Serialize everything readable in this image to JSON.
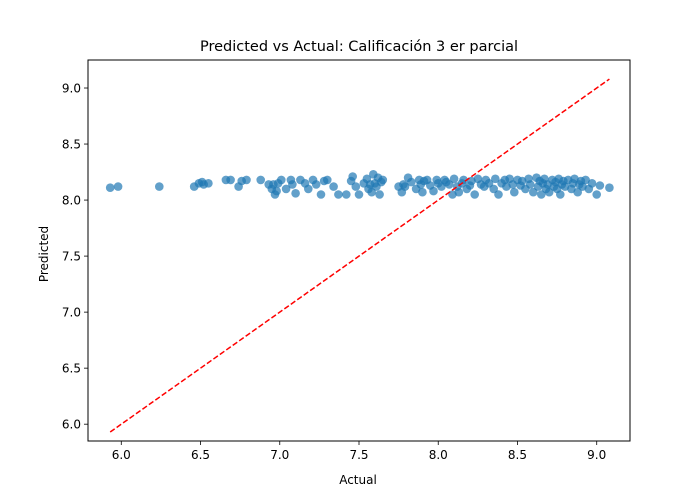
{
  "chart_data": {
    "type": "scatter",
    "title": "Predicted vs Actual: Calificación 3 er parcial",
    "xlabel": "Actual",
    "ylabel": "Predicted",
    "xlim": [
      5.79,
      9.21
    ],
    "ylim": [
      5.85,
      9.25
    ],
    "xticks": [
      "6.0",
      "6.5",
      "7.0",
      "7.5",
      "8.0",
      "8.5",
      "9.0"
    ],
    "yticks": [
      "6.0",
      "6.5",
      "7.0",
      "7.5",
      "8.0",
      "8.5",
      "9.0"
    ],
    "grid": false,
    "point_color": "#1f77b4",
    "reference_line": {
      "style": "dashed",
      "color": "#ff0000",
      "from": [
        5.93,
        5.93
      ],
      "to": [
        9.08,
        9.08
      ]
    },
    "points": [
      [
        5.93,
        8.11
      ],
      [
        5.98,
        8.12
      ],
      [
        6.24,
        8.12
      ],
      [
        6.46,
        8.12
      ],
      [
        6.49,
        8.15
      ],
      [
        6.51,
        8.16
      ],
      [
        6.52,
        8.14
      ],
      [
        6.55,
        8.15
      ],
      [
        6.66,
        8.18
      ],
      [
        6.69,
        8.18
      ],
      [
        6.74,
        8.12
      ],
      [
        6.76,
        8.17
      ],
      [
        6.79,
        8.18
      ],
      [
        6.88,
        8.18
      ],
      [
        6.93,
        8.14
      ],
      [
        6.95,
        8.1
      ],
      [
        6.96,
        8.14
      ],
      [
        6.97,
        8.05
      ],
      [
        6.98,
        8.08
      ],
      [
        6.99,
        8.15
      ],
      [
        7.01,
        8.18
      ],
      [
        7.04,
        8.1
      ],
      [
        7.07,
        8.18
      ],
      [
        7.08,
        8.14
      ],
      [
        7.1,
        8.06
      ],
      [
        7.13,
        8.18
      ],
      [
        7.16,
        8.15
      ],
      [
        7.18,
        8.1
      ],
      [
        7.21,
        8.18
      ],
      [
        7.23,
        8.14
      ],
      [
        7.26,
        8.05
      ],
      [
        7.28,
        8.17
      ],
      [
        7.3,
        8.18
      ],
      [
        7.34,
        8.12
      ],
      [
        7.37,
        8.05
      ],
      [
        7.42,
        8.05
      ],
      [
        7.45,
        8.17
      ],
      [
        7.46,
        8.21
      ],
      [
        7.48,
        8.12
      ],
      [
        7.5,
        8.05
      ],
      [
        7.53,
        8.15
      ],
      [
        7.55,
        8.19
      ],
      [
        7.56,
        8.1
      ],
      [
        7.57,
        8.14
      ],
      [
        7.58,
        8.07
      ],
      [
        7.59,
        8.23
      ],
      [
        7.6,
        8.15
      ],
      [
        7.61,
        8.12
      ],
      [
        7.62,
        8.2
      ],
      [
        7.63,
        8.05
      ],
      [
        7.64,
        8.16
      ],
      [
        7.65,
        8.18
      ],
      [
        7.75,
        8.12
      ],
      [
        7.77,
        8.07
      ],
      [
        7.78,
        8.14
      ],
      [
        7.79,
        8.12
      ],
      [
        7.81,
        8.2
      ],
      [
        7.83,
        8.16
      ],
      [
        7.86,
        8.1
      ],
      [
        7.88,
        8.18
      ],
      [
        7.89,
        8.14
      ],
      [
        7.9,
        8.07
      ],
      [
        7.91,
        8.17
      ],
      [
        7.93,
        8.18
      ],
      [
        7.95,
        8.13
      ],
      [
        7.97,
        8.08
      ],
      [
        7.99,
        8.18
      ],
      [
        8.0,
        8.15
      ],
      [
        8.02,
        8.12
      ],
      [
        8.04,
        8.18
      ],
      [
        8.05,
        8.16
      ],
      [
        8.07,
        8.14
      ],
      [
        8.09,
        8.05
      ],
      [
        8.1,
        8.19
      ],
      [
        8.12,
        8.12
      ],
      [
        8.13,
        8.07
      ],
      [
        8.15,
        8.15
      ],
      [
        8.16,
        8.18
      ],
      [
        8.18,
        8.1
      ],
      [
        8.2,
        8.13
      ],
      [
        8.21,
        8.17
      ],
      [
        8.23,
        8.05
      ],
      [
        8.25,
        8.19
      ],
      [
        8.27,
        8.14
      ],
      [
        8.29,
        8.12
      ],
      [
        8.3,
        8.18
      ],
      [
        8.32,
        8.15
      ],
      [
        8.35,
        8.1
      ],
      [
        8.36,
        8.19
      ],
      [
        8.38,
        8.05
      ],
      [
        8.4,
        8.15
      ],
      [
        8.42,
        8.18
      ],
      [
        8.43,
        8.12
      ],
      [
        8.45,
        8.19
      ],
      [
        8.47,
        8.14
      ],
      [
        8.48,
        8.07
      ],
      [
        8.5,
        8.18
      ],
      [
        8.52,
        8.13
      ],
      [
        8.53,
        8.17
      ],
      [
        8.55,
        8.1
      ],
      [
        8.57,
        8.19
      ],
      [
        8.58,
        8.14
      ],
      [
        8.6,
        8.07
      ],
      [
        8.62,
        8.2
      ],
      [
        8.63,
        8.12
      ],
      [
        8.64,
        8.17
      ],
      [
        8.65,
        8.05
      ],
      [
        8.66,
        8.15
      ],
      [
        8.67,
        8.19
      ],
      [
        8.68,
        8.1
      ],
      [
        8.69,
        8.14
      ],
      [
        8.7,
        8.07
      ],
      [
        8.72,
        8.18
      ],
      [
        8.73,
        8.12
      ],
      [
        8.74,
        8.16
      ],
      [
        8.75,
        8.1
      ],
      [
        8.76,
        8.19
      ],
      [
        8.77,
        8.05
      ],
      [
        8.78,
        8.14
      ],
      [
        8.79,
        8.17
      ],
      [
        8.8,
        8.12
      ],
      [
        8.82,
        8.18
      ],
      [
        8.84,
        8.1
      ],
      [
        8.85,
        8.15
      ],
      [
        8.86,
        8.19
      ],
      [
        8.88,
        8.07
      ],
      [
        8.89,
        8.14
      ],
      [
        8.9,
        8.17
      ],
      [
        8.91,
        8.12
      ],
      [
        8.93,
        8.18
      ],
      [
        8.95,
        8.1
      ],
      [
        8.97,
        8.15
      ],
      [
        9.0,
        8.05
      ],
      [
        9.02,
        8.13
      ],
      [
        9.08,
        8.11
      ]
    ]
  }
}
